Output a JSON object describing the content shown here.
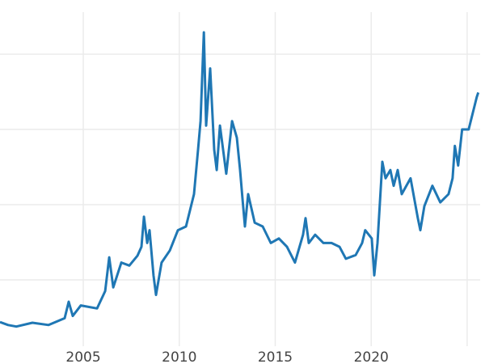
{
  "chart_data": {
    "type": "line",
    "title": "",
    "xlabel": "",
    "ylabel": "",
    "xlim": [
      2000.66,
      2025.93
    ],
    "ylim": [
      0,
      47.2
    ],
    "x_ticks": [
      2005,
      2010,
      2015,
      2020,
      2025
    ],
    "x_tick_labels": [
      "2005",
      "2010",
      "2015",
      "2020",
      ""
    ],
    "y_gridlines": [
      10,
      20,
      30,
      40
    ],
    "grid": true,
    "color": "#1f77b4",
    "series": [
      {
        "x": [
          2000.66,
          2001.08,
          2001.51,
          2002.35,
          2003.19,
          2004.03,
          2004.24,
          2004.45,
          2004.87,
          2005.72,
          2006.14,
          2006.35,
          2006.56,
          2006.98,
          2007.4,
          2007.82,
          2008.03,
          2008.16,
          2008.33,
          2008.45,
          2008.66,
          2008.79,
          2009.08,
          2009.51,
          2009.93,
          2010.35,
          2010.77,
          2010.98,
          2011.11,
          2011.28,
          2011.4,
          2011.61,
          2011.82,
          2011.95,
          2012.12,
          2012.45,
          2012.75,
          2013.0,
          2013.17,
          2013.29,
          2013.42,
          2013.59,
          2013.93,
          2014.35,
          2014.77,
          2015.19,
          2015.61,
          2016.03,
          2016.45,
          2016.58,
          2016.75,
          2017.08,
          2017.51,
          2017.93,
          2018.35,
          2018.68,
          2019.19,
          2019.53,
          2019.69,
          2020.03,
          2020.16,
          2020.33,
          2020.58,
          2020.75,
          2021.0,
          2021.17,
          2021.38,
          2021.59,
          2022.05,
          2022.43,
          2022.56,
          2022.77,
          2023.19,
          2023.6,
          2024.03,
          2024.24,
          2024.36,
          2024.53,
          2024.74,
          2025.08,
          2025.5,
          2025.58
        ],
        "values": [
          4.4,
          4.0,
          3.8,
          4.3,
          4.0,
          4.9,
          7.1,
          5.2,
          6.6,
          6.2,
          8.5,
          13.0,
          9.0,
          12.3,
          11.9,
          13.2,
          14.4,
          18.4,
          14.9,
          16.6,
          10.6,
          8.0,
          12.3,
          13.9,
          16.6,
          17.1,
          21.4,
          27.3,
          31.1,
          42.9,
          30.5,
          38.1,
          27.3,
          24.6,
          30.5,
          24.1,
          31.1,
          28.9,
          24.6,
          20.9,
          17.1,
          21.4,
          17.6,
          17.1,
          14.9,
          15.5,
          14.4,
          12.3,
          16.0,
          18.2,
          14.9,
          16.0,
          14.9,
          14.9,
          14.4,
          12.8,
          13.3,
          14.9,
          16.6,
          15.5,
          10.6,
          14.9,
          25.7,
          23.5,
          24.6,
          22.5,
          24.6,
          21.4,
          23.5,
          18.2,
          16.6,
          19.8,
          22.5,
          20.3,
          21.4,
          23.5,
          27.8,
          25.2,
          30.0,
          30.0,
          34.3,
          34.9
        ]
      }
    ]
  }
}
